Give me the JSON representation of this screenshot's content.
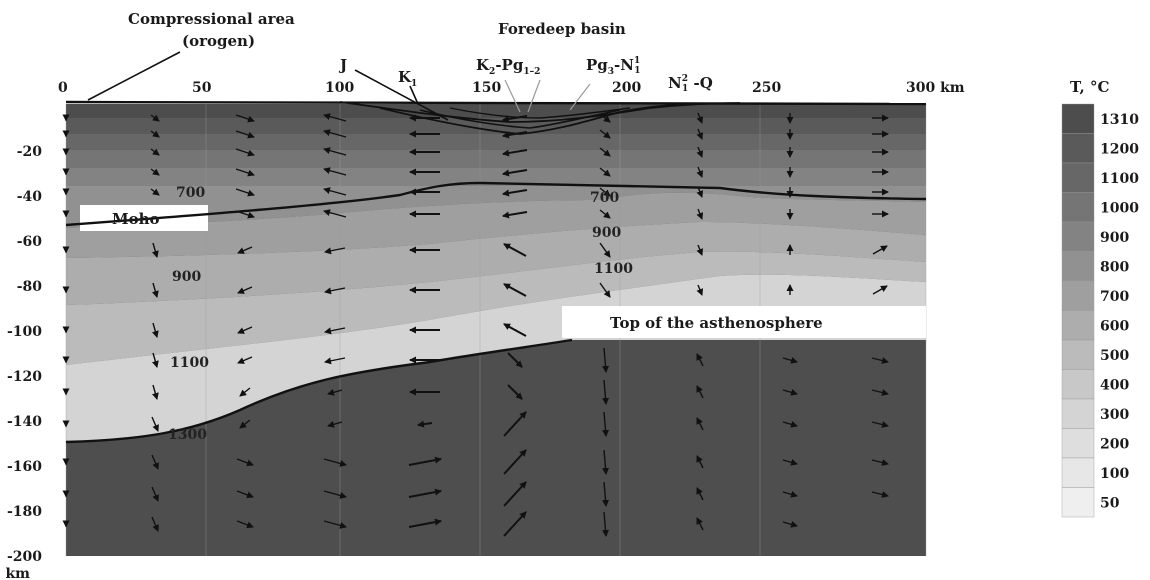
{
  "annotations": {
    "compressional_area": "Compressional area",
    "orogen": "(orogen)",
    "foredeep_basin": "Foredeep basin",
    "moho": "Moho",
    "top_asthenosphere": "Top of the asthenosphere"
  },
  "stratigraphy": {
    "j": "J",
    "k1": "K",
    "k1_sub": "1",
    "k2pg": "K",
    "k2pg_sub1": "2",
    "k2pg_mid": "-Pg",
    "k2pg_sub2": "1–2",
    "pg3n": "Pg",
    "pg3n_sub1": "3",
    "pg3n_mid": "-N",
    "pg3n_sub2": "1",
    "pg3n_sup2": "1",
    "n1q": "N",
    "n1q_sup": "2",
    "n1q_sub": "1",
    "n1q_tail": " -Q"
  },
  "x_axis": {
    "ticks": [
      "0",
      "50",
      "100",
      "150",
      "200",
      "250",
      "300 km"
    ]
  },
  "y_axis": {
    "ticks": [
      "-20",
      "-40",
      "-60",
      "-80",
      "-100",
      "-120",
      "-140",
      "-160",
      "-180",
      "-200"
    ],
    "unit": "km"
  },
  "isotherm_labels": {
    "left_700": "700",
    "left_900": "900",
    "left_1100": "1100",
    "left_1300": "1300",
    "right_700": "700",
    "right_900": "900",
    "right_1100": "1100"
  },
  "legend": {
    "title": "T, °C",
    "entries": [
      "1310",
      "1200",
      "1100",
      "1000",
      "900",
      "800",
      "700",
      "600",
      "500",
      "400",
      "300",
      "200",
      "100",
      "50"
    ],
    "colors": [
      "#4d4d4d",
      "#5a5a5a",
      "#676767",
      "#757575",
      "#838383",
      "#919191",
      "#9f9f9f",
      "#adadad",
      "#bbbbbb",
      "#c8c8c8",
      "#d4d4d4",
      "#dedede",
      "#e7e7e7",
      "#efefef"
    ]
  },
  "colors": {
    "background": "#ffffff",
    "lines": "#111111",
    "arrows": "#111111"
  }
}
